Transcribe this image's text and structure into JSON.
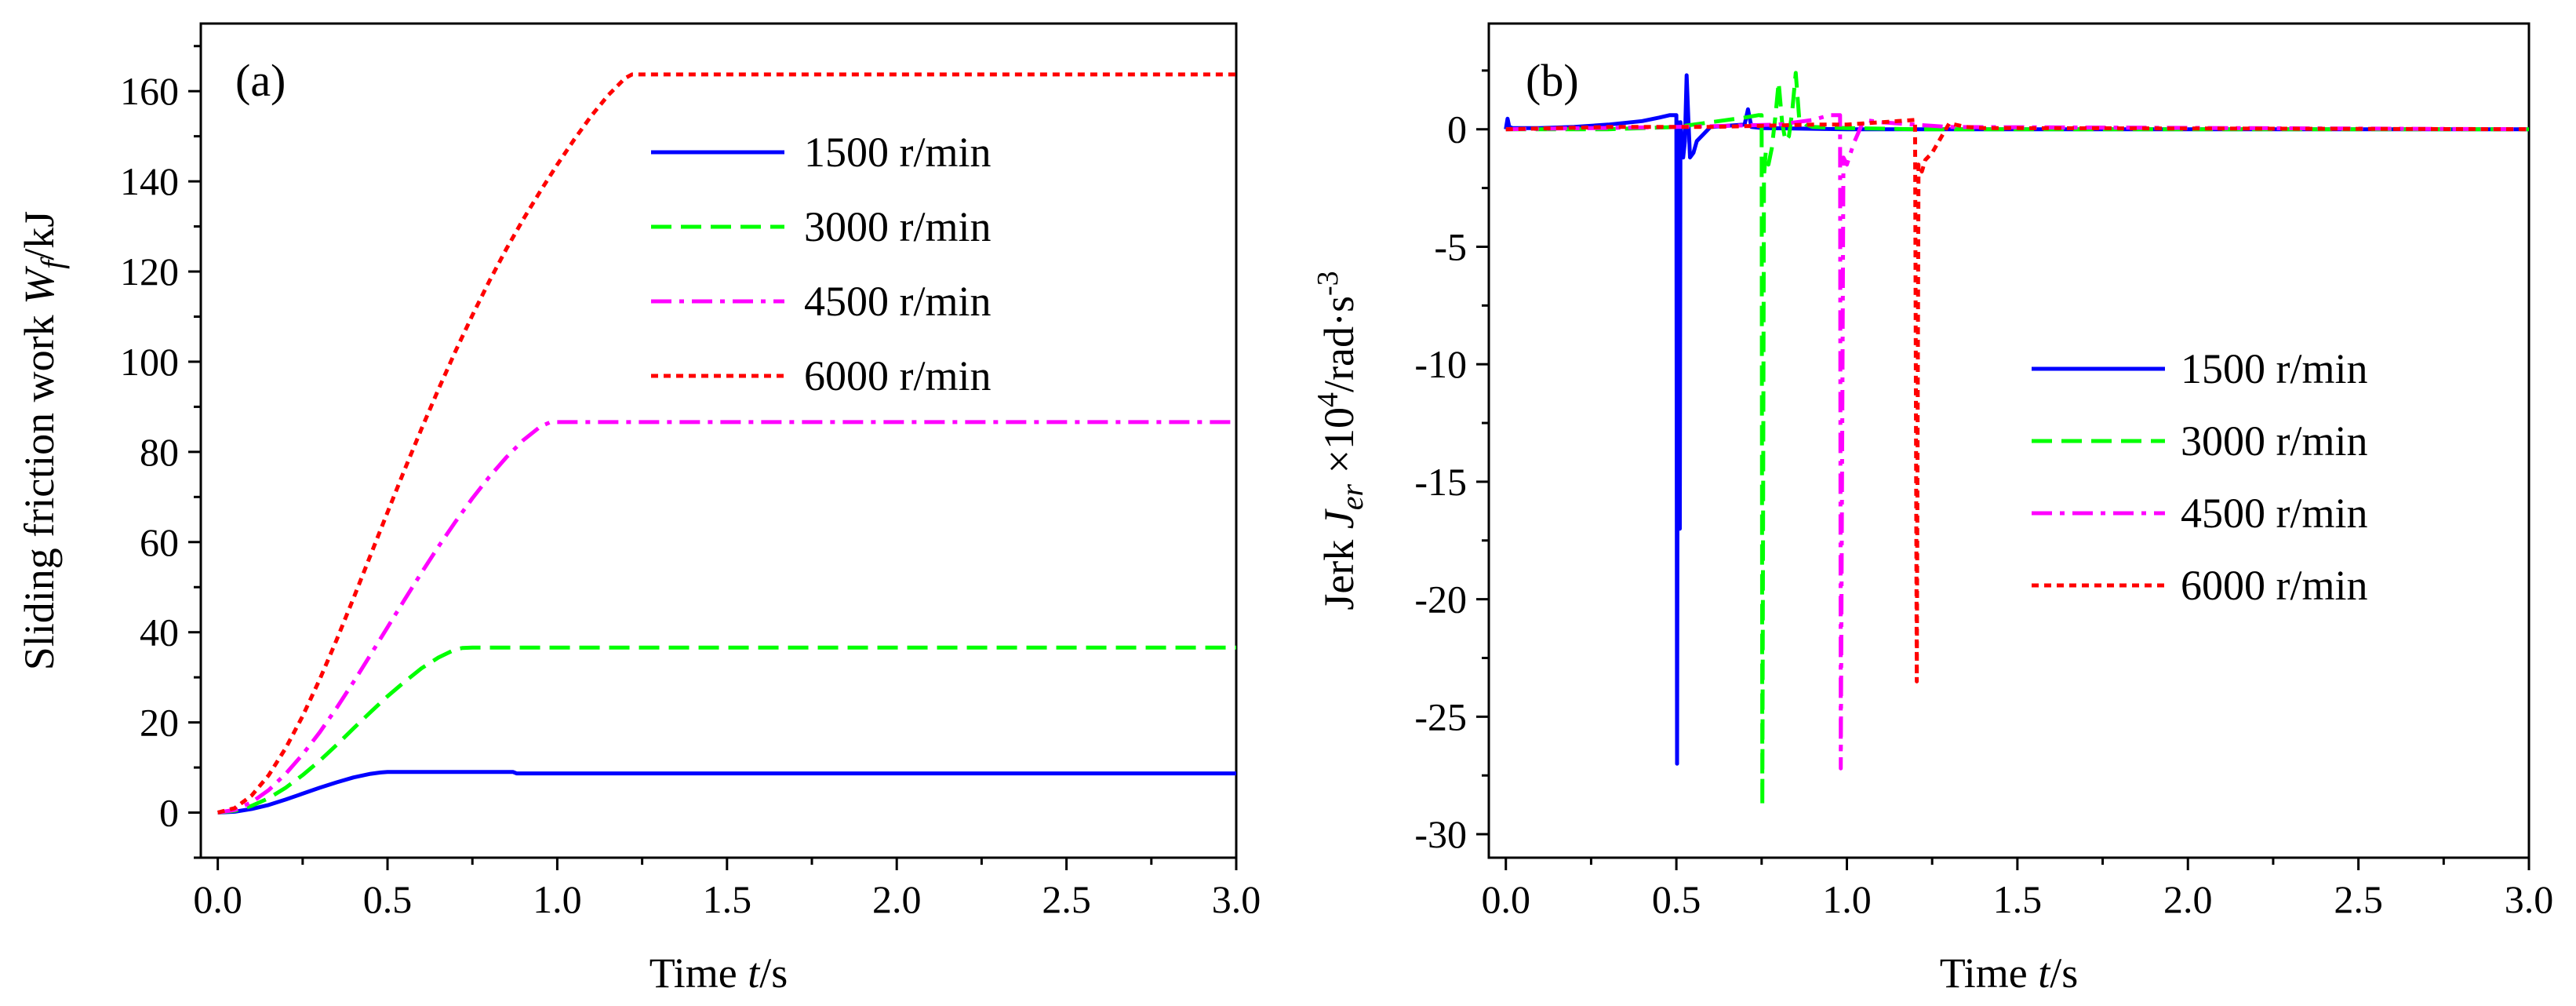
{
  "chart_data": [
    {
      "type": "line",
      "panel_label": "(a)",
      "xlabel_prefix": "Time ",
      "xlabel_var": "t",
      "xlabel_unit": "/s",
      "ylabel_prefix": "Sliding friction work ",
      "ylabel_var": "W",
      "ylabel_sub": "f",
      "ylabel_unit": "/kJ",
      "xlim": [
        -0.05,
        3.0
      ],
      "ylim": [
        -10,
        175
      ],
      "x_ticks": [
        0.0,
        0.5,
        1.0,
        1.5,
        2.0,
        2.5,
        3.0
      ],
      "x_tick_labels": [
        "0.0",
        "0.5",
        "1.0",
        "1.5",
        "2.0",
        "2.5",
        "3.0"
      ],
      "y_ticks": [
        0,
        20,
        40,
        60,
        80,
        100,
        120,
        140,
        160
      ],
      "y_tick_labels": [
        "0",
        "20",
        "40",
        "60",
        "80",
        "100",
        "120",
        "140",
        "160"
      ],
      "legend_position": "top-right",
      "series": [
        {
          "name": "1500 r/min",
          "color": "#0000ff",
          "dash": "solid",
          "x": [
            0,
            0.05,
            0.1,
            0.15,
            0.2,
            0.25,
            0.3,
            0.35,
            0.4,
            0.45,
            0.48,
            0.5,
            0.87,
            0.88,
            3.0
          ],
          "y": [
            0,
            0.2,
            0.8,
            1.7,
            2.9,
            4.2,
            5.5,
            6.7,
            7.8,
            8.6,
            8.9,
            9.0,
            9.0,
            8.7,
            8.7
          ]
        },
        {
          "name": "3000 r/min",
          "color": "#00ff00",
          "dash": "dashed",
          "x": [
            0,
            0.05,
            0.1,
            0.15,
            0.2,
            0.25,
            0.3,
            0.35,
            0.4,
            0.45,
            0.5,
            0.55,
            0.6,
            0.65,
            0.7,
            0.72,
            0.75,
            3.0
          ],
          "y": [
            0,
            0.4,
            1.5,
            3.2,
            5.5,
            8.3,
            11.5,
            15.0,
            18.7,
            22.3,
            25.8,
            29.0,
            32.0,
            34.4,
            36.2,
            36.5,
            36.6,
            36.6
          ]
        },
        {
          "name": "4500 r/min",
          "color": "#ff00ff",
          "dash": "dashdot",
          "x": [
            0,
            0.05,
            0.1,
            0.15,
            0.2,
            0.25,
            0.3,
            0.35,
            0.4,
            0.45,
            0.5,
            0.55,
            0.6,
            0.65,
            0.7,
            0.75,
            0.8,
            0.85,
            0.9,
            0.95,
            0.98,
            3.0
          ],
          "y": [
            0,
            0.6,
            2.3,
            5.0,
            8.6,
            12.9,
            17.8,
            23.2,
            29.0,
            35.0,
            41.1,
            47.2,
            53.2,
            59.0,
            64.5,
            69.7,
            74.5,
            78.8,
            82.6,
            85.6,
            86.6,
            86.6
          ]
        },
        {
          "name": "6000 r/min",
          "color": "#ff0000",
          "dash": "dotted",
          "x": [
            0,
            0.05,
            0.1,
            0.15,
            0.2,
            0.25,
            0.3,
            0.35,
            0.4,
            0.45,
            0.5,
            0.55,
            0.6,
            0.65,
            0.7,
            0.75,
            0.8,
            0.85,
            0.9,
            0.95,
            1.0,
            1.05,
            1.1,
            1.15,
            1.2,
            1.22,
            3.0
          ],
          "y": [
            0,
            1.0,
            3.8,
            8.3,
            14.3,
            21.4,
            29.5,
            38.3,
            47.6,
            57.1,
            66.6,
            76.0,
            85.1,
            93.9,
            102.3,
            110.3,
            117.9,
            125.0,
            131.6,
            137.8,
            143.7,
            149.3,
            154.5,
            159.1,
            162.9,
            163.7,
            163.7
          ]
        }
      ]
    },
    {
      "type": "line",
      "panel_label": "(b)",
      "xlabel_prefix": "Time ",
      "xlabel_var": "t",
      "xlabel_unit": "/s",
      "ylabel_prefix": "Jerk ",
      "ylabel_var": "J",
      "ylabel_sub": "er",
      "ylabel_mid": " ×10",
      "ylabel_sup": "4",
      "ylabel_unit": "/rad·s",
      "ylabel_unit_sup": "-3",
      "xlim": [
        -0.05,
        3.0
      ],
      "ylim": [
        -31,
        4.5
      ],
      "x_ticks": [
        0.0,
        0.5,
        1.0,
        1.5,
        2.0,
        2.5,
        3.0
      ],
      "x_tick_labels": [
        "0.0",
        "0.5",
        "1.0",
        "1.5",
        "2.0",
        "2.5",
        "3.0"
      ],
      "y_ticks": [
        0,
        -5,
        -10,
        -15,
        -20,
        -25,
        -30
      ],
      "y_tick_labels": [
        "0",
        "-5",
        "-10",
        "-15",
        "-20",
        "-25",
        "-30"
      ],
      "legend_position": "center-right",
      "series": [
        {
          "name": "1500 r/min",
          "color": "#0000ff",
          "dash": "solid",
          "x": [
            0,
            0.005,
            0.01,
            0.02,
            0.1,
            0.2,
            0.3,
            0.4,
            0.45,
            0.48,
            0.5,
            0.502,
            0.505,
            0.51,
            0.512,
            0.52,
            0.525,
            0.53,
            0.535,
            0.54,
            0.55,
            0.56,
            0.6,
            0.7,
            0.71,
            0.72,
            0.75,
            1.0,
            3.0
          ],
          "y": [
            0,
            0.45,
            0.1,
            0.05,
            0.05,
            0.1,
            0.2,
            0.35,
            0.5,
            0.6,
            0.6,
            -27.0,
            0.3,
            -17.0,
            0.3,
            -1.2,
            -0.5,
            2.3,
            0.5,
            -1.2,
            -1.0,
            -0.5,
            0.1,
            0.2,
            0.85,
            0.1,
            0.05,
            0.0,
            0.0
          ]
        },
        {
          "name": "3000 r/min",
          "color": "#00ff00",
          "dash": "dashed",
          "x": [
            0,
            0.3,
            0.5,
            0.6,
            0.7,
            0.74,
            0.75,
            0.752,
            0.757,
            0.762,
            0.77,
            0.78,
            0.79,
            0.8,
            0.81,
            0.82,
            0.83,
            0.84,
            0.85,
            0.86,
            0.88,
            0.9,
            1.0,
            1.2,
            3.0
          ],
          "y": [
            0,
            0.0,
            0.1,
            0.3,
            0.5,
            0.6,
            0.6,
            -28.8,
            -2.0,
            -1.0,
            -1.5,
            -0.8,
            0.5,
            2.0,
            0.3,
            -0.5,
            -0.3,
            0.8,
            2.4,
            0.5,
            0.2,
            0.1,
            0.05,
            0.0,
            0.0
          ]
        },
        {
          "name": "4500 r/min",
          "color": "#ff00ff",
          "dash": "dashdot",
          "x": [
            0,
            0.5,
            0.8,
            0.9,
            0.95,
            0.97,
            0.98,
            0.982,
            0.99,
            1.0,
            1.02,
            1.05,
            1.1,
            1.2,
            1.3,
            3.0
          ],
          "y": [
            0,
            0.1,
            0.2,
            0.4,
            0.6,
            0.6,
            0.6,
            -27.2,
            -1.2,
            -1.5,
            -0.6,
            0.4,
            0.3,
            0.2,
            0.1,
            0.0
          ]
        },
        {
          "name": "6000 r/min",
          "color": "#ff0000",
          "dash": "dotted",
          "x": [
            0,
            0.3,
            0.6,
            0.9,
            1.0,
            1.1,
            1.15,
            1.2,
            1.205,
            1.21,
            1.22,
            1.23,
            1.25,
            1.27,
            1.3,
            1.35,
            1.4,
            3.0
          ],
          "y": [
            0,
            0.1,
            0.1,
            0.2,
            0.2,
            0.3,
            0.35,
            0.4,
            -23.5,
            -1.5,
            -1.8,
            -1.3,
            -1.0,
            -0.5,
            0.25,
            0.1,
            0.05,
            0.0
          ]
        }
      ]
    }
  ]
}
